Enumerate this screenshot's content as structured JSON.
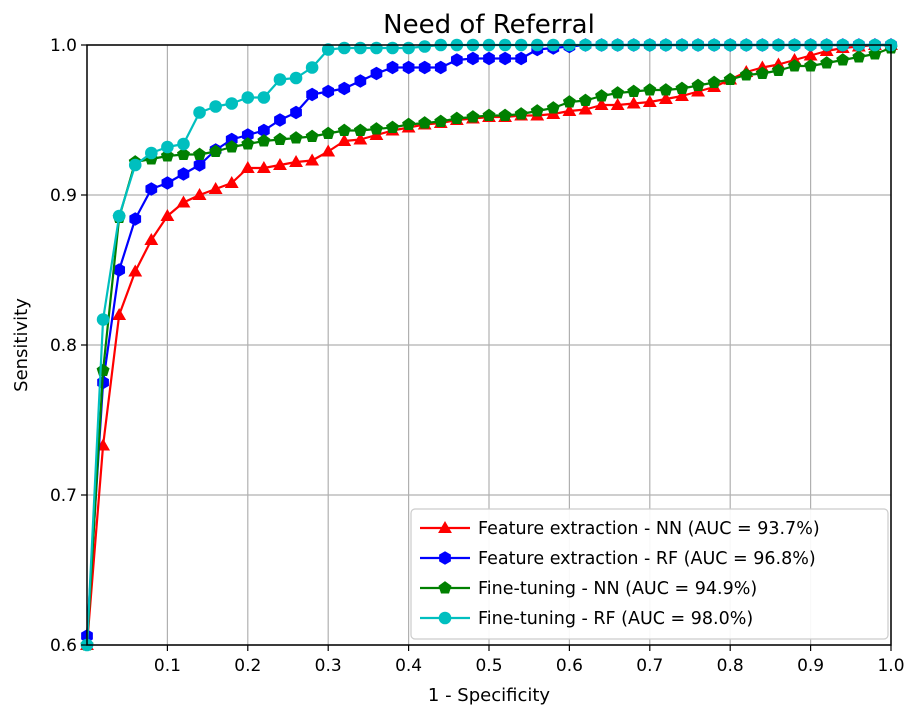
{
  "chart_data": {
    "type": "line",
    "title": "Need of Referral",
    "xlabel": "1 - Specificity",
    "ylabel": "Sensitivity",
    "xlim": [
      0.0,
      1.0
    ],
    "ylim": [
      0.6,
      1.0
    ],
    "x_ticks": [
      "0.1",
      "0.2",
      "0.3",
      "0.4",
      "0.5",
      "0.6",
      "0.7",
      "0.8",
      "0.9",
      "1.0"
    ],
    "y_ticks": [
      "0.6",
      "0.7",
      "0.8",
      "0.9",
      "1.0"
    ],
    "grid": true,
    "legend_position": "lower-right",
    "series": [
      {
        "name": "Feature extraction - NN (AUC = 93.7%)",
        "color": "#ff0000",
        "marker": "triangle",
        "x": [
          0.0,
          0.02,
          0.04,
          0.06,
          0.08,
          0.1,
          0.12,
          0.14,
          0.16,
          0.18,
          0.2,
          0.22,
          0.24,
          0.26,
          0.28,
          0.3,
          0.32,
          0.34,
          0.36,
          0.38,
          0.4,
          0.42,
          0.44,
          0.46,
          0.48,
          0.5,
          0.52,
          0.54,
          0.56,
          0.58,
          0.6,
          0.62,
          0.64,
          0.66,
          0.68,
          0.7,
          0.72,
          0.74,
          0.76,
          0.78,
          0.8,
          0.82,
          0.84,
          0.86,
          0.88,
          0.9,
          0.92,
          0.94,
          0.96,
          0.98,
          1.0
        ],
        "y": [
          0.6,
          0.733,
          0.82,
          0.849,
          0.87,
          0.886,
          0.895,
          0.9,
          0.904,
          0.908,
          0.918,
          0.918,
          0.92,
          0.922,
          0.923,
          0.929,
          0.936,
          0.937,
          0.94,
          0.943,
          0.945,
          0.947,
          0.948,
          0.95,
          0.951,
          0.952,
          0.952,
          0.953,
          0.953,
          0.954,
          0.956,
          0.957,
          0.96,
          0.96,
          0.961,
          0.962,
          0.964,
          0.966,
          0.969,
          0.972,
          0.977,
          0.982,
          0.985,
          0.987,
          0.99,
          0.993,
          0.996,
          0.998,
          0.999,
          1.0,
          1.0
        ]
      },
      {
        "name": "Feature extraction - RF (AUC = 96.8%)",
        "color": "#0000ff",
        "marker": "hexagon",
        "x": [
          0.0,
          0.02,
          0.04,
          0.06,
          0.08,
          0.1,
          0.12,
          0.14,
          0.16,
          0.18,
          0.2,
          0.22,
          0.24,
          0.26,
          0.28,
          0.3,
          0.32,
          0.34,
          0.36,
          0.38,
          0.4,
          0.42,
          0.44,
          0.46,
          0.48,
          0.5,
          0.52,
          0.54,
          0.56,
          0.58,
          0.6,
          0.62,
          0.64,
          0.66,
          0.68,
          0.7,
          0.72,
          0.74,
          0.76,
          0.78,
          0.8,
          0.82,
          0.84,
          0.86,
          0.88,
          0.9,
          0.92,
          0.94,
          0.96,
          0.98,
          1.0
        ],
        "y": [
          0.606,
          0.775,
          0.85,
          0.884,
          0.904,
          0.908,
          0.914,
          0.92,
          0.93,
          0.937,
          0.94,
          0.943,
          0.95,
          0.955,
          0.967,
          0.969,
          0.971,
          0.976,
          0.981,
          0.985,
          0.985,
          0.985,
          0.985,
          0.99,
          0.991,
          0.991,
          0.991,
          0.991,
          0.997,
          0.998,
          0.999,
          1.0,
          1.0,
          1.0,
          1.0,
          1.0,
          1.0,
          1.0,
          1.0,
          1.0,
          1.0,
          1.0,
          1.0,
          1.0,
          1.0,
          1.0,
          1.0,
          1.0,
          1.0,
          1.0,
          1.0
        ]
      },
      {
        "name": "Fine-tuning - NN (AUC = 94.9%)",
        "color": "#008000",
        "marker": "pentagon",
        "x": [
          0.0,
          0.02,
          0.04,
          0.06,
          0.08,
          0.1,
          0.12,
          0.14,
          0.16,
          0.18,
          0.2,
          0.22,
          0.24,
          0.26,
          0.28,
          0.3,
          0.32,
          0.34,
          0.36,
          0.38,
          0.4,
          0.42,
          0.44,
          0.46,
          0.48,
          0.5,
          0.52,
          0.54,
          0.56,
          0.58,
          0.6,
          0.62,
          0.64,
          0.66,
          0.68,
          0.7,
          0.72,
          0.74,
          0.76,
          0.78,
          0.8,
          0.82,
          0.84,
          0.86,
          0.88,
          0.9,
          0.92,
          0.94,
          0.96,
          0.98,
          1.0
        ],
        "y": [
          0.6,
          0.783,
          0.885,
          0.922,
          0.924,
          0.926,
          0.927,
          0.927,
          0.929,
          0.932,
          0.934,
          0.936,
          0.937,
          0.938,
          0.939,
          0.941,
          0.943,
          0.943,
          0.944,
          0.945,
          0.947,
          0.948,
          0.949,
          0.951,
          0.952,
          0.953,
          0.953,
          0.954,
          0.956,
          0.958,
          0.962,
          0.963,
          0.966,
          0.968,
          0.969,
          0.97,
          0.97,
          0.971,
          0.973,
          0.975,
          0.977,
          0.98,
          0.981,
          0.983,
          0.986,
          0.986,
          0.988,
          0.99,
          0.992,
          0.994,
          0.998
        ]
      },
      {
        "name": "Fine-tuning - RF (AUC = 98.0%)",
        "color": "#00bfbf",
        "marker": "circle",
        "x": [
          0.0,
          0.02,
          0.04,
          0.06,
          0.08,
          0.1,
          0.12,
          0.14,
          0.16,
          0.18,
          0.2,
          0.22,
          0.24,
          0.26,
          0.28,
          0.3,
          0.32,
          0.34,
          0.36,
          0.38,
          0.4,
          0.42,
          0.44,
          0.46,
          0.48,
          0.5,
          0.52,
          0.54,
          0.56,
          0.58,
          0.6,
          0.62,
          0.64,
          0.66,
          0.68,
          0.7,
          0.72,
          0.74,
          0.76,
          0.78,
          0.8,
          0.82,
          0.84,
          0.86,
          0.88,
          0.9,
          0.92,
          0.94,
          0.96,
          0.98,
          1.0
        ],
        "y": [
          0.6,
          0.817,
          0.886,
          0.92,
          0.928,
          0.932,
          0.934,
          0.955,
          0.959,
          0.961,
          0.965,
          0.965,
          0.977,
          0.978,
          0.985,
          0.997,
          0.998,
          0.998,
          0.998,
          0.998,
          0.998,
          0.999,
          1.0,
          1.0,
          1.0,
          1.0,
          1.0,
          1.0,
          1.0,
          1.0,
          1.0,
          1.0,
          1.0,
          1.0,
          1.0,
          1.0,
          1.0,
          1.0,
          1.0,
          1.0,
          1.0,
          1.0,
          1.0,
          1.0,
          1.0,
          1.0,
          1.0,
          1.0,
          1.0,
          1.0,
          1.0
        ]
      }
    ]
  }
}
